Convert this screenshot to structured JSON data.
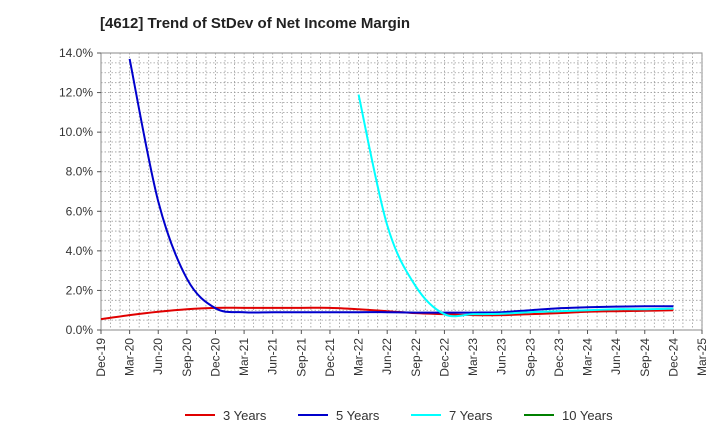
{
  "title": "[4612]  Trend of StDev of Net Income Margin",
  "chart_data": {
    "type": "line",
    "title": "[4612]  Trend of StDev of Net Income Margin",
    "xlabel": "",
    "ylabel": "",
    "ylim": [
      0,
      14
    ],
    "y_tick_labels": [
      "0.0%",
      "2.0%",
      "4.0%",
      "6.0%",
      "8.0%",
      "10.0%",
      "12.0%",
      "14.0%"
    ],
    "x_tick_labels": [
      "Dec-19",
      "Mar-20",
      "Jun-20",
      "Sep-20",
      "Dec-20",
      "Mar-21",
      "Jun-21",
      "Sep-21",
      "Dec-21",
      "Mar-22",
      "Jun-22",
      "Sep-22",
      "Dec-22",
      "Mar-23",
      "Jun-23",
      "Sep-23",
      "Dec-23",
      "Mar-24",
      "Jun-24",
      "Sep-24",
      "Dec-24",
      "Mar-25"
    ],
    "grid": true,
    "legend_position": "bottom",
    "series": [
      {
        "name": "3 Years",
        "color": "#e00000",
        "points": [
          [
            "Dec-19",
            0.55
          ],
          [
            "Mar-20",
            0.75
          ],
          [
            "Jun-20",
            0.92
          ],
          [
            "Sep-20",
            1.05
          ],
          [
            "Dec-20",
            1.12
          ],
          [
            "Mar-21",
            1.12
          ],
          [
            "Jun-21",
            1.12
          ],
          [
            "Sep-21",
            1.12
          ],
          [
            "Dec-21",
            1.12
          ],
          [
            "Mar-22",
            1.05
          ],
          [
            "Jun-22",
            0.95
          ],
          [
            "Sep-22",
            0.85
          ],
          [
            "Dec-22",
            0.8
          ],
          [
            "Mar-23",
            0.75
          ],
          [
            "Jun-23",
            0.75
          ],
          [
            "Sep-23",
            0.8
          ],
          [
            "Dec-23",
            0.85
          ],
          [
            "Mar-24",
            0.92
          ],
          [
            "Jun-24",
            0.95
          ],
          [
            "Sep-24",
            0.97
          ],
          [
            "Dec-24",
            1.0
          ]
        ]
      },
      {
        "name": "5 Years",
        "color": "#0000cc",
        "points": [
          [
            "Mar-20",
            13.7
          ],
          [
            "Jun-20",
            6.5
          ],
          [
            "Sep-20",
            2.6
          ],
          [
            "Dec-20",
            1.1
          ],
          [
            "Mar-21",
            0.9
          ],
          [
            "Jun-21",
            0.9
          ],
          [
            "Sep-21",
            0.9
          ],
          [
            "Dec-21",
            0.9
          ],
          [
            "Mar-22",
            0.9
          ],
          [
            "Jun-22",
            0.9
          ],
          [
            "Sep-22",
            0.88
          ],
          [
            "Dec-22",
            0.88
          ],
          [
            "Mar-23",
            0.88
          ],
          [
            "Jun-23",
            0.9
          ],
          [
            "Sep-23",
            1.0
          ],
          [
            "Dec-23",
            1.1
          ],
          [
            "Mar-24",
            1.15
          ],
          [
            "Jun-24",
            1.18
          ],
          [
            "Sep-24",
            1.2
          ],
          [
            "Dec-24",
            1.2
          ]
        ]
      },
      {
        "name": "7 Years",
        "color": "#00ffff",
        "points": [
          [
            "Mar-22",
            11.9
          ],
          [
            "Jun-22",
            5.3
          ],
          [
            "Sep-22",
            2.2
          ],
          [
            "Dec-22",
            0.8
          ],
          [
            "Mar-23",
            0.8
          ],
          [
            "Jun-23",
            0.82
          ],
          [
            "Sep-23",
            0.9
          ],
          [
            "Dec-23",
            0.95
          ],
          [
            "Mar-24",
            1.0
          ],
          [
            "Jun-24",
            1.05
          ],
          [
            "Sep-24",
            1.05
          ],
          [
            "Dec-24",
            1.08
          ]
        ]
      },
      {
        "name": "10 Years",
        "color": "#008000",
        "points": []
      }
    ]
  }
}
